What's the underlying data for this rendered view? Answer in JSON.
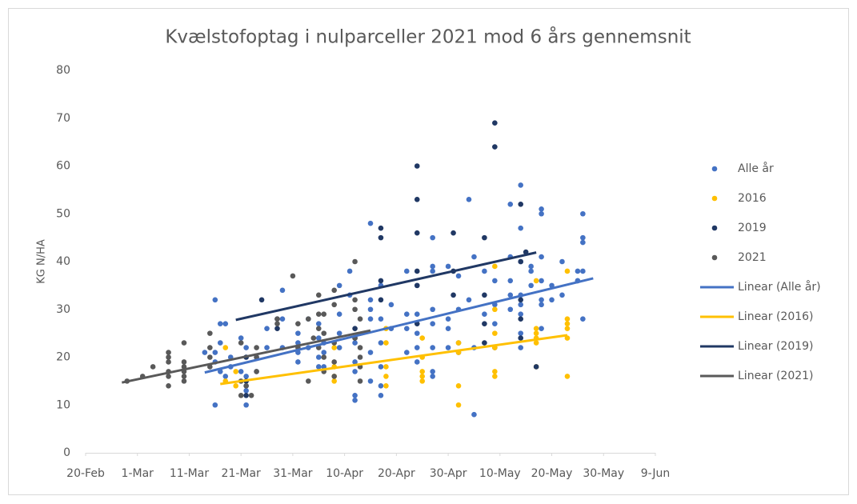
{
  "chart_data": {
    "type": "scatter",
    "title": "Kvælstofoptag i nulparceller 2021 mod 6 års gennemsnit",
    "y_label": "KG N/HA",
    "xlim": [
      51,
      161
    ],
    "xticks": [
      {
        "value": 51,
        "label": "20-Feb"
      },
      {
        "value": 61,
        "label": "1-Mar"
      },
      {
        "value": 71,
        "label": "11-Mar"
      },
      {
        "value": 81,
        "label": "21-Mar"
      },
      {
        "value": 91,
        "label": "31-Mar"
      },
      {
        "value": 101,
        "label": "10-Apr"
      },
      {
        "value": 111,
        "label": "20-Apr"
      },
      {
        "value": 121,
        "label": "30-Apr"
      },
      {
        "value": 131,
        "label": "10-May"
      },
      {
        "value": 141,
        "label": "20-May"
      },
      {
        "value": 151,
        "label": "30-May"
      },
      {
        "value": 161,
        "label": "9-Jun"
      }
    ],
    "ylim": [
      0,
      80
    ],
    "yticks": [
      0,
      10,
      20,
      30,
      40,
      50,
      60,
      70,
      80
    ],
    "grid": false,
    "legend": "right",
    "series": [
      {
        "name": "Alle år",
        "color": "#4472c4",
        "x": [
          74,
          76,
          76,
          76,
          76,
          77,
          77,
          77,
          78,
          78,
          79,
          79,
          81,
          81,
          82,
          82,
          82,
          82,
          82,
          84,
          84,
          86,
          86,
          89,
          89,
          89,
          92,
          92,
          92,
          92,
          94,
          94,
          96,
          96,
          96,
          96,
          97,
          97,
          97,
          100,
          100,
          100,
          100,
          102,
          102,
          103,
          103,
          103,
          103,
          103,
          106,
          106,
          106,
          106,
          106,
          106,
          108,
          108,
          108,
          108,
          108,
          108,
          110,
          110,
          113,
          113,
          113,
          113,
          115,
          115,
          115,
          115,
          115,
          118,
          118,
          118,
          118,
          118,
          118,
          118,
          118,
          121,
          121,
          121,
          121,
          123,
          123,
          123,
          123,
          125,
          125,
          126,
          126,
          126,
          128,
          128,
          130,
          130,
          130,
          130,
          133,
          133,
          133,
          133,
          133,
          135,
          135,
          135,
          135,
          135,
          135,
          135,
          135,
          137,
          137,
          137,
          139,
          139,
          139,
          139,
          139,
          139,
          139,
          141,
          141,
          143,
          143,
          146,
          146,
          146,
          147,
          147,
          147,
          147,
          147
        ],
        "values": [
          21,
          32,
          10,
          19,
          21,
          27,
          23,
          17,
          27,
          16,
          18,
          20,
          24,
          17,
          14,
          13,
          10,
          16,
          22,
          20,
          17,
          26,
          22,
          34,
          28,
          22,
          23,
          21,
          19,
          25,
          28,
          22,
          20,
          18,
          27,
          24,
          21,
          18,
          23,
          35,
          29,
          25,
          22,
          38,
          33,
          11,
          12,
          19,
          17,
          23,
          48,
          32,
          28,
          21,
          15,
          30,
          35,
          14,
          18,
          23,
          28,
          12,
          31,
          26,
          38,
          29,
          26,
          21,
          35,
          25,
          29,
          22,
          19,
          38,
          30,
          27,
          22,
          17,
          16,
          45,
          39,
          28,
          26,
          22,
          39,
          37,
          30,
          23,
          21,
          53,
          32,
          8,
          22,
          41,
          29,
          38,
          22,
          27,
          31,
          36,
          52,
          41,
          36,
          33,
          30,
          56,
          47,
          40,
          33,
          31,
          29,
          22,
          25,
          39,
          35,
          38,
          51,
          50,
          41,
          36,
          32,
          31,
          26,
          35,
          32,
          40,
          33,
          36,
          38,
          36,
          45,
          44,
          38,
          28,
          50
        ]
      },
      {
        "name": "2016",
        "color": "#ffc000",
        "x": [
          78,
          78,
          80,
          80,
          99,
          99,
          99,
          99,
          109,
          109,
          109,
          109,
          109,
          116,
          116,
          116,
          116,
          116,
          123,
          123,
          123,
          123,
          130,
          130,
          130,
          130,
          130,
          130,
          138,
          138,
          138,
          138,
          138,
          138,
          144,
          144,
          144,
          144,
          144,
          144
        ],
        "values": [
          22,
          15,
          17,
          14,
          15,
          16,
          18,
          22,
          14,
          16,
          18,
          23,
          26,
          15,
          16,
          17,
          20,
          24,
          10,
          14,
          21,
          23,
          16,
          17,
          22,
          25,
          30,
          39,
          18,
          23,
          24,
          25,
          26,
          36,
          16,
          24,
          26,
          27,
          28,
          38
        ]
      },
      {
        "name": "2019",
        "color": "#203864",
        "x": [
          82,
          82,
          82,
          85,
          88,
          88,
          103,
          103,
          108,
          108,
          108,
          108,
          115,
          115,
          115,
          115,
          115,
          115,
          122,
          122,
          122,
          128,
          128,
          128,
          128,
          130,
          130,
          135,
          135,
          135,
          135,
          135,
          136,
          138
        ],
        "values": [
          12,
          15,
          20,
          32,
          26,
          28,
          24,
          26,
          45,
          47,
          36,
          32,
          60,
          53,
          46,
          38,
          35,
          27,
          46,
          38,
          33,
          45,
          33,
          27,
          23,
          69,
          64,
          52,
          40,
          32,
          28,
          24,
          42,
          18
        ]
      },
      {
        "name": "2021",
        "color": "#595959",
        "x": [
          59,
          62,
          64,
          67,
          67,
          67,
          67,
          67,
          67,
          70,
          70,
          70,
          70,
          70,
          70,
          75,
          75,
          75,
          75,
          81,
          81,
          81,
          82,
          83,
          84,
          84,
          84,
          88,
          88,
          91,
          92,
          92,
          94,
          94,
          95,
          96,
          96,
          96,
          96,
          97,
          97,
          97,
          97,
          99,
          99,
          99,
          99,
          99,
          103,
          103,
          103,
          103,
          104,
          104,
          104,
          104,
          104
        ],
        "values": [
          15,
          16,
          18,
          14,
          16,
          17,
          19,
          20,
          21,
          15,
          16,
          17,
          18,
          19,
          23,
          18,
          20,
          22,
          25,
          23,
          15,
          12,
          14,
          12,
          17,
          20,
          22,
          27,
          28,
          37,
          27,
          22,
          28,
          15,
          24,
          22,
          26,
          29,
          33,
          17,
          20,
          25,
          29,
          16,
          19,
          23,
          31,
          34,
          40,
          30,
          32,
          24,
          20,
          18,
          15,
          22,
          28
        ]
      },
      {
        "name": "Linear (Alle år)",
        "type": "line",
        "color": "#4472c4",
        "x": [
          74,
          149
        ],
        "values": [
          16.8,
          36.5
        ]
      },
      {
        "name": "Linear (2016)",
        "type": "line",
        "color": "#ffc000",
        "x": [
          77,
          144
        ],
        "values": [
          14.4,
          24.6
        ]
      },
      {
        "name": "Linear (2019)",
        "type": "line",
        "color": "#203864",
        "x": [
          80,
          138
        ],
        "values": [
          27.8,
          41.9
        ]
      },
      {
        "name": "Linear (2021)",
        "type": "line",
        "color": "#595959",
        "x": [
          58,
          106
        ],
        "values": [
          14.7,
          25.6
        ]
      }
    ]
  }
}
